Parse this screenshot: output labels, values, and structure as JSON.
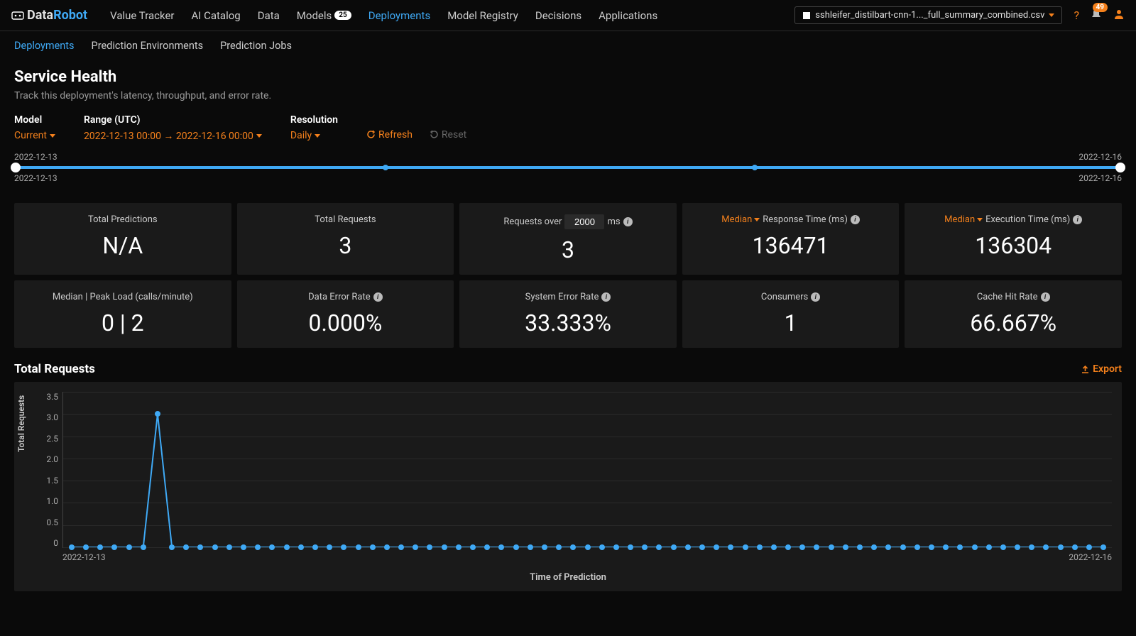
{
  "brand": {
    "part1": "Data",
    "part2": "Robot"
  },
  "topnav": {
    "items": [
      {
        "label": "Value Tracker"
      },
      {
        "label": "AI Catalog"
      },
      {
        "label": "Data"
      },
      {
        "label": "Models",
        "badge": "25"
      },
      {
        "label": "Deployments",
        "active": true
      },
      {
        "label": "Model Registry"
      },
      {
        "label": "Decisions"
      },
      {
        "label": "Applications"
      }
    ],
    "file": "sshleifer_distilbart-cnn-1..._full_summary_combined.csv",
    "help": "?",
    "notif_count": "49"
  },
  "subnav": {
    "items": [
      {
        "label": "Deployments",
        "active": true
      },
      {
        "label": "Prediction Environments"
      },
      {
        "label": "Prediction Jobs"
      }
    ]
  },
  "page": {
    "title": "Service Health",
    "subtitle": "Track this deployment's latency, throughput, and error rate."
  },
  "controls": {
    "model_label": "Model",
    "model_value": "Current",
    "range_label": "Range (UTC)",
    "range_value": "2022-12-13  00:00 → 2022-12-16  00:00",
    "resolution_label": "Resolution",
    "resolution_value": "Daily",
    "refresh": "Refresh",
    "reset": "Reset"
  },
  "slider": {
    "top_left": "2022-12-13",
    "top_right": "2022-12-16",
    "bottom_left": "2022-12-13",
    "bottom_right": "2022-12-16",
    "ticks": [
      33.3,
      66.6
    ]
  },
  "metrics_row1": [
    {
      "label": "Total Predictions",
      "value": "N/A"
    },
    {
      "label": "Total Requests",
      "value": "3"
    },
    {
      "label_pre": "Requests over",
      "threshold": "2000",
      "label_post": "ms",
      "value": "3",
      "info": true
    },
    {
      "median": true,
      "label": "Response Time (ms)",
      "value": "136471",
      "info": true
    },
    {
      "median": true,
      "label": "Execution Time (ms)",
      "value": "136304",
      "info": true
    }
  ],
  "metrics_row2": [
    {
      "label": "Median | Peak Load (calls/minute)",
      "value": "0 | 2"
    },
    {
      "label": "Data Error Rate",
      "value": "0.000%",
      "info": true
    },
    {
      "label": "System Error Rate",
      "value": "33.333%",
      "info": true
    },
    {
      "label": "Consumers",
      "value": "1",
      "info": true
    },
    {
      "label": "Cache Hit Rate",
      "value": "66.667%",
      "info": true
    }
  ],
  "median_label": "Median",
  "chart": {
    "title": "Total Requests",
    "export": "Export",
    "type": "line",
    "y_label": "Total Requests",
    "x_label": "Time of Prediction",
    "x_start": "2022-12-13",
    "x_end": "2022-12-16",
    "ylim": [
      0,
      3.5
    ],
    "ytick_step": 0.5,
    "yticks": [
      "3.5",
      "3.0",
      "2.5",
      "2.0",
      "1.5",
      "1.0",
      "0.5",
      "0"
    ],
    "n_points": 73,
    "spike_index": 6,
    "spike_value": 3.0,
    "line_color": "#3fa9f5",
    "point_color": "#3fa9f5",
    "background_color": "#1a1a1a",
    "grid_color": "#2a2a2a"
  }
}
